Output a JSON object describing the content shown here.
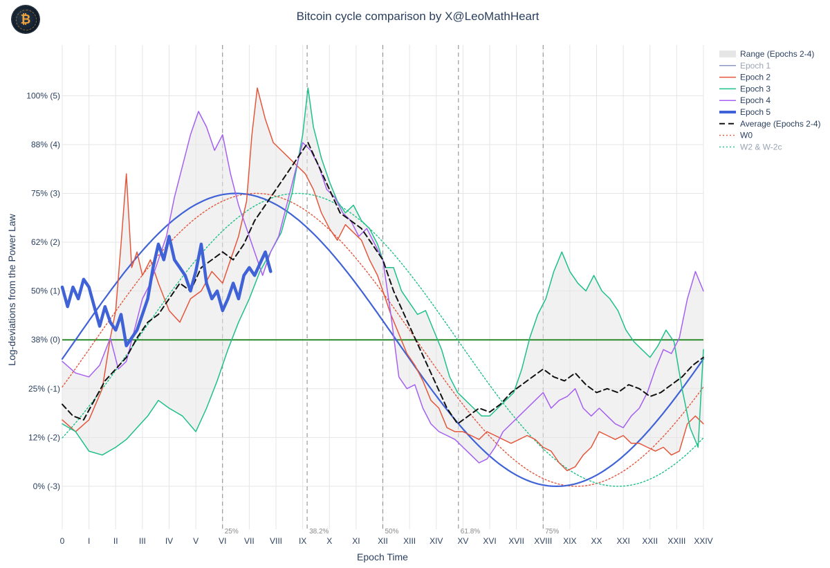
{
  "chart_data": {
    "type": "line",
    "title": "Bitcoin cycle comparison by X@LeoMathHeart",
    "xlabel": "Epoch Time",
    "ylabel": "Log-deviations from the Power Law",
    "x_tick_labels": [
      "0",
      "I",
      "II",
      "III",
      "IV",
      "V",
      "VI",
      "VII",
      "VIII",
      "IX",
      "X",
      "XI",
      "XII",
      "XIII",
      "XIV",
      "XV",
      "XVI",
      "XVII",
      "XVIII",
      "XIX",
      "XX",
      "XXI",
      "XXII",
      "XXIII",
      "XXIV"
    ],
    "xlim": [
      0,
      24
    ],
    "y_ticks": [
      {
        "value": 0,
        "label": "0% (-3)"
      },
      {
        "value": 12.5,
        "label": "12% (-2)"
      },
      {
        "value": 25,
        "label": "25% (-1)"
      },
      {
        "value": 37.5,
        "label": "38% (0)"
      },
      {
        "value": 50,
        "label": "50% (1)"
      },
      {
        "value": 62.5,
        "label": "62% (2)"
      },
      {
        "value": 75,
        "label": "75% (3)"
      },
      {
        "value": 87.5,
        "label": "88% (4)"
      },
      {
        "value": 100,
        "label": "100% (5)"
      }
    ],
    "ylim": [
      -11,
      113
    ],
    "grid": true,
    "legend_position": "top-right",
    "reference_lines": [
      {
        "x": 6,
        "label": "25%"
      },
      {
        "x": 9.167,
        "label": "38.2%"
      },
      {
        "x": 12,
        "label": "50%"
      },
      {
        "x": 14.83,
        "label": "61.8%"
      },
      {
        "x": 18,
        "label": "75%"
      }
    ],
    "zero_line": {
      "y": 37.5,
      "color": "#2a8a2a"
    },
    "series": [
      {
        "name": "Range (Epochs 2-4)",
        "style": "band",
        "color": "#dddddd"
      },
      {
        "name": "Epoch 1",
        "style": "solid",
        "color": "#8d97c4",
        "values": []
      },
      {
        "name": "Epoch 2",
        "style": "solid",
        "color": "#e4563c",
        "x": [
          0,
          0.5,
          1,
          1.5,
          1.8,
          2,
          2.2,
          2.4,
          2.6,
          2.8,
          3,
          3.3,
          3.6,
          4,
          4.4,
          4.8,
          5.2,
          5.6,
          6,
          6.3,
          6.6,
          6.9,
          7.1,
          7.3,
          7.6,
          7.9,
          8.2,
          8.5,
          8.8,
          9.1,
          9.4,
          9.7,
          10,
          10.3,
          10.6,
          10.9,
          11.2,
          11.5,
          11.8,
          12,
          12.3,
          12.6,
          12.9,
          13.2,
          13.5,
          13.8,
          14.1,
          14.4,
          14.7,
          15,
          15.3,
          15.6,
          15.9,
          16.2,
          16.5,
          16.8,
          17.1,
          17.4,
          17.7,
          18,
          18.3,
          18.6,
          18.9,
          19.2,
          19.5,
          19.8,
          20.1,
          20.4,
          20.7,
          21,
          21.3,
          21.6,
          21.9,
          22.2,
          22.5,
          22.8,
          23.1,
          23.4,
          23.7,
          24
        ],
        "values": [
          17,
          14,
          17,
          25,
          38,
          45,
          62,
          80,
          56,
          60,
          54,
          58,
          52,
          45,
          42,
          48,
          50,
          55,
          52,
          58,
          64,
          73,
          90,
          102,
          94,
          88,
          86,
          84,
          82,
          80,
          76,
          70,
          66,
          63,
          67,
          65,
          63,
          58,
          54,
          50,
          44,
          39,
          34,
          31,
          27,
          22,
          20,
          15,
          14,
          14,
          13,
          12,
          14,
          13,
          12,
          11,
          12,
          13,
          12,
          10,
          9,
          6,
          4,
          5,
          8,
          10,
          14,
          13,
          12,
          13,
          11,
          11,
          10,
          9,
          10,
          8,
          9,
          16,
          18,
          16
        ]
      },
      {
        "name": "Epoch 3",
        "style": "solid",
        "color": "#1dbf8a",
        "x": [
          0,
          0.5,
          1,
          1.5,
          2,
          2.4,
          2.8,
          3.2,
          3.6,
          4,
          4.5,
          5,
          5.4,
          5.8,
          6.2,
          6.6,
          7,
          7.4,
          7.8,
          8.2,
          8.6,
          9,
          9.2,
          9.4,
          9.7,
          10,
          10.3,
          10.6,
          10.9,
          11.2,
          11.5,
          11.8,
          12.1,
          12.4,
          12.7,
          13,
          13.3,
          13.6,
          13.9,
          14.2,
          14.5,
          14.8,
          15.1,
          15.4,
          15.7,
          16,
          16.3,
          16.6,
          16.9,
          17.2,
          17.5,
          17.8,
          18.1,
          18.4,
          18.7,
          19,
          19.3,
          19.6,
          19.9,
          20.2,
          20.5,
          20.8,
          21.1,
          21.4,
          21.7,
          22,
          22.3,
          22.6,
          22.9,
          23.2,
          23.5,
          23.8,
          24
        ],
        "values": [
          16,
          14,
          9,
          8,
          10,
          12,
          15,
          18,
          22,
          20,
          18,
          14,
          20,
          27,
          35,
          42,
          48,
          55,
          60,
          65,
          75,
          90,
          102,
          92,
          84,
          78,
          73,
          70,
          72,
          68,
          66,
          62,
          56,
          56,
          50,
          47,
          44,
          45,
          40,
          35,
          28,
          24,
          22,
          20,
          18,
          18,
          20,
          22,
          24,
          30,
          38,
          44,
          48,
          55,
          60,
          55,
          52,
          50,
          54,
          50,
          48,
          45,
          40,
          37,
          35,
          33,
          36,
          40,
          37,
          25,
          15,
          10,
          35
        ]
      },
      {
        "name": "Epoch 4",
        "style": "solid",
        "color": "#a65ff0",
        "x": [
          0,
          0.5,
          1,
          1.4,
          1.8,
          2.1,
          2.4,
          2.7,
          3,
          3.3,
          3.6,
          3.9,
          4.2,
          4.5,
          4.8,
          5.1,
          5.4,
          5.7,
          6,
          6.3,
          6.6,
          6.9,
          7.2,
          7.5,
          7.8,
          8.1,
          8.4,
          8.7,
          9,
          9.3,
          9.6,
          9.9,
          10.2,
          10.5,
          10.8,
          11.1,
          11.4,
          11.7,
          12,
          12.3,
          12.6,
          12.9,
          13.2,
          13.5,
          13.8,
          14.1,
          14.4,
          14.7,
          15,
          15.3,
          15.6,
          15.9,
          16.2,
          16.5,
          16.8,
          17.1,
          17.4,
          17.7,
          18,
          18.3,
          18.6,
          18.9,
          19.2,
          19.5,
          19.8,
          20.1,
          20.4,
          20.7,
          21,
          21.3,
          21.6,
          21.9,
          22.2,
          22.5,
          22.8,
          23.1,
          23.4,
          23.7,
          24
        ],
        "values": [
          32,
          29,
          28,
          31,
          38,
          30,
          32,
          40,
          48,
          52,
          58,
          64,
          74,
          82,
          90,
          96,
          92,
          86,
          90,
          80,
          72,
          66,
          60,
          54,
          60,
          64,
          72,
          80,
          88,
          86,
          82,
          76,
          74,
          70,
          68,
          64,
          66,
          62,
          58,
          44,
          28,
          25,
          26,
          20,
          16,
          14,
          13,
          12,
          10,
          8,
          6,
          7,
          10,
          14,
          16,
          18,
          20,
          22,
          24,
          20,
          22,
          23,
          25,
          20,
          18,
          20,
          18,
          16,
          15,
          18,
          20,
          24,
          30,
          35,
          34,
          38,
          48,
          55,
          50
        ]
      },
      {
        "name": "Epoch 5",
        "style": "bold",
        "color": "#3f62d6",
        "x": [
          0,
          0.2,
          0.4,
          0.6,
          0.8,
          1,
          1.2,
          1.4,
          1.6,
          1.8,
          2,
          2.2,
          2.4,
          2.6,
          2.8,
          3,
          3.2,
          3.4,
          3.6,
          3.8,
          4,
          4.2,
          4.4,
          4.6,
          4.8,
          5,
          5.2,
          5.4,
          5.6,
          5.8,
          6,
          6.2,
          6.4,
          6.6,
          6.8,
          7,
          7.2,
          7.4,
          7.6,
          7.8
        ],
        "values": [
          51,
          46,
          51,
          48,
          53,
          51,
          46,
          41,
          46,
          42,
          40,
          44,
          36,
          38,
          40,
          44,
          48,
          56,
          62,
          58,
          64,
          58,
          56,
          54,
          50,
          55,
          62,
          52,
          48,
          50,
          45,
          48,
          52,
          48,
          54,
          56,
          54,
          57,
          60,
          55
        ]
      },
      {
        "name": "Average (Epochs 2-4)",
        "style": "dashed",
        "color": "#111111",
        "x": [
          0,
          0.4,
          0.8,
          1.2,
          1.6,
          2,
          2.4,
          2.8,
          3.2,
          3.6,
          4,
          4.4,
          4.8,
          5.2,
          5.6,
          6,
          6.4,
          6.8,
          7.2,
          7.6,
          8,
          8.4,
          8.8,
          9.2,
          9.6,
          10,
          10.4,
          10.8,
          11.2,
          11.6,
          12,
          12.4,
          12.8,
          13.2,
          13.6,
          14,
          14.4,
          14.8,
          15.2,
          15.6,
          16,
          16.4,
          16.8,
          17.2,
          17.6,
          18,
          18.4,
          18.8,
          19.2,
          19.6,
          20,
          20.4,
          20.8,
          21.2,
          21.6,
          22,
          22.4,
          22.8,
          23.2,
          23.6,
          24
        ],
        "values": [
          21,
          18,
          17,
          22,
          27,
          30,
          33,
          38,
          42,
          44,
          48,
          52,
          50,
          56,
          58,
          60,
          58,
          62,
          68,
          72,
          76,
          80,
          84,
          88,
          82,
          76,
          70,
          68,
          66,
          62,
          58,
          50,
          44,
          38,
          32,
          26,
          20,
          16,
          18,
          20,
          19,
          21,
          24,
          26,
          28,
          30,
          28,
          27,
          29,
          26,
          24,
          25,
          24,
          26,
          25,
          23,
          24,
          26,
          28,
          31,
          33
        ]
      },
      {
        "name": "W0",
        "style": "dotted",
        "color": "#e4563c",
        "form": "sinusoid",
        "amplitude": 37.5,
        "center": 37.5,
        "period": 24,
        "peak_x": 7.25
      },
      {
        "name": "W2 & W-2c",
        "style": "dotted",
        "color": "#1dbf8a",
        "form": "sinusoid",
        "amplitude": 37.5,
        "center": 37.5,
        "period": 24,
        "peak_x": 8.8
      },
      {
        "name": "",
        "style": "solid",
        "color": "#3f62d6",
        "form": "sinusoid",
        "amplitude": 37.5,
        "center": 37.5,
        "period": 24,
        "peak_x": 6.5
      }
    ]
  }
}
